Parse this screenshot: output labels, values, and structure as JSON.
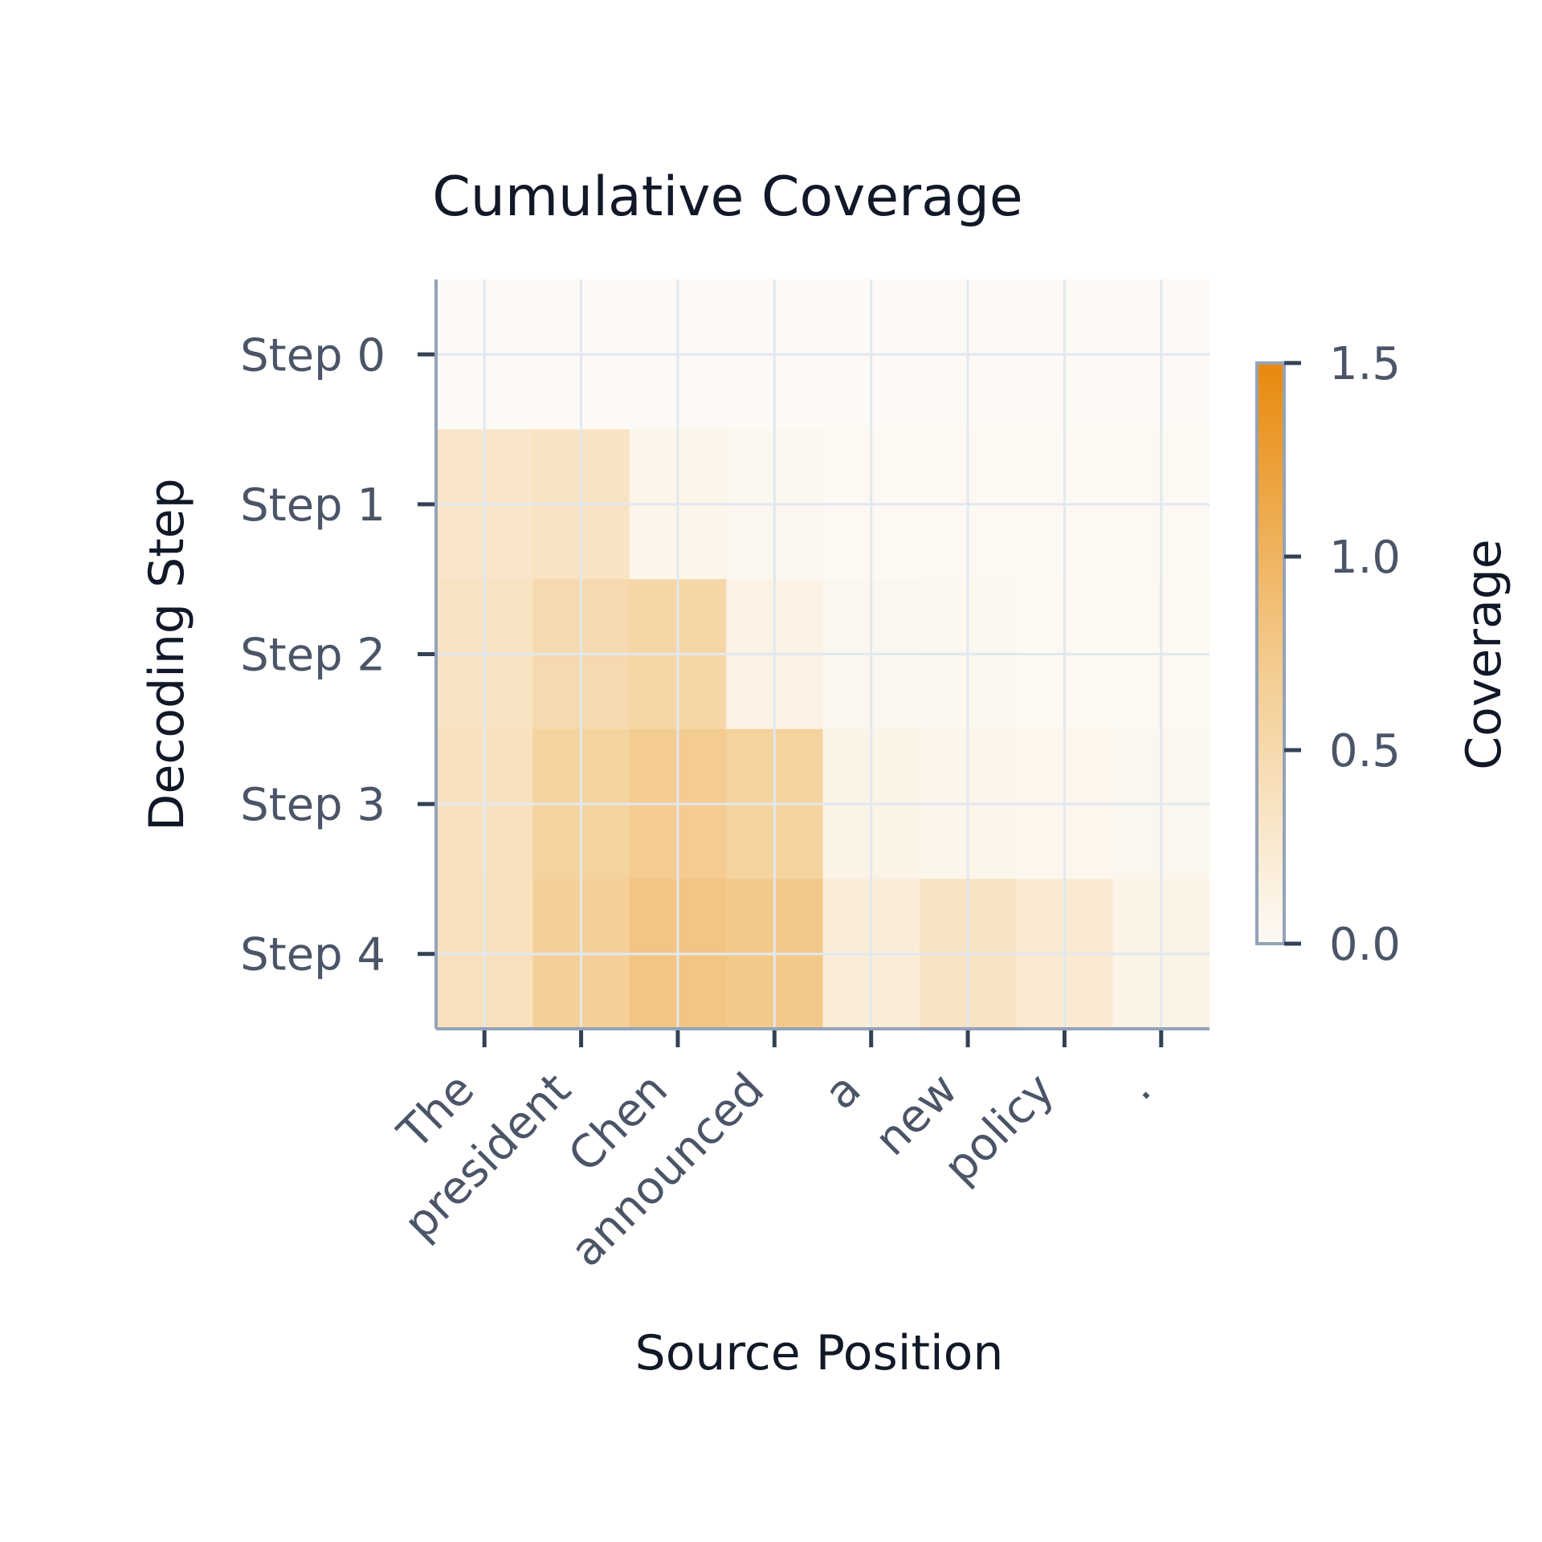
{
  "chart_data": {
    "type": "heatmap",
    "title": "Cumulative Coverage",
    "xlabel": "Source Position",
    "ylabel": "Decoding Step",
    "x_categories": [
      "The",
      "president",
      "Chen",
      "announced",
      "a",
      "new",
      "policy",
      "."
    ],
    "y_categories": [
      "Step 0",
      "Step 1",
      "Step 2",
      "Step 3",
      "Step 4"
    ],
    "values": [
      [
        0.0,
        0.0,
        0.0,
        0.0,
        0.0,
        0.0,
        0.0,
        0.0
      ],
      [
        0.3,
        0.35,
        0.08,
        0.04,
        0.02,
        0.02,
        0.02,
        0.02
      ],
      [
        0.35,
        0.5,
        0.55,
        0.12,
        0.05,
        0.04,
        0.03,
        0.03
      ],
      [
        0.38,
        0.6,
        0.7,
        0.6,
        0.1,
        0.08,
        0.06,
        0.05
      ],
      [
        0.4,
        0.65,
        0.8,
        0.75,
        0.2,
        0.35,
        0.25,
        0.1
      ]
    ],
    "colorbar": {
      "label": "Coverage",
      "range": [
        0.0,
        1.5
      ],
      "ticks": [
        "0.0",
        "0.5",
        "1.0",
        "1.5"
      ],
      "color_low": "#fdfaf5",
      "color_high": "#e8890c"
    },
    "grid": true
  }
}
